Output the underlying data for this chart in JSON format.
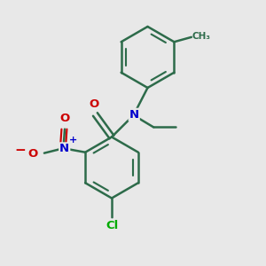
{
  "background_color": "#e8e8e8",
  "bond_color": "#2d6b4a",
  "bond_width": 1.8,
  "N_color": "#0000cc",
  "O_color": "#cc0000",
  "Cl_color": "#00aa00",
  "figsize": [
    3.0,
    3.0
  ],
  "dpi": 100,
  "xlim": [
    0,
    10
  ],
  "ylim": [
    0,
    10
  ]
}
